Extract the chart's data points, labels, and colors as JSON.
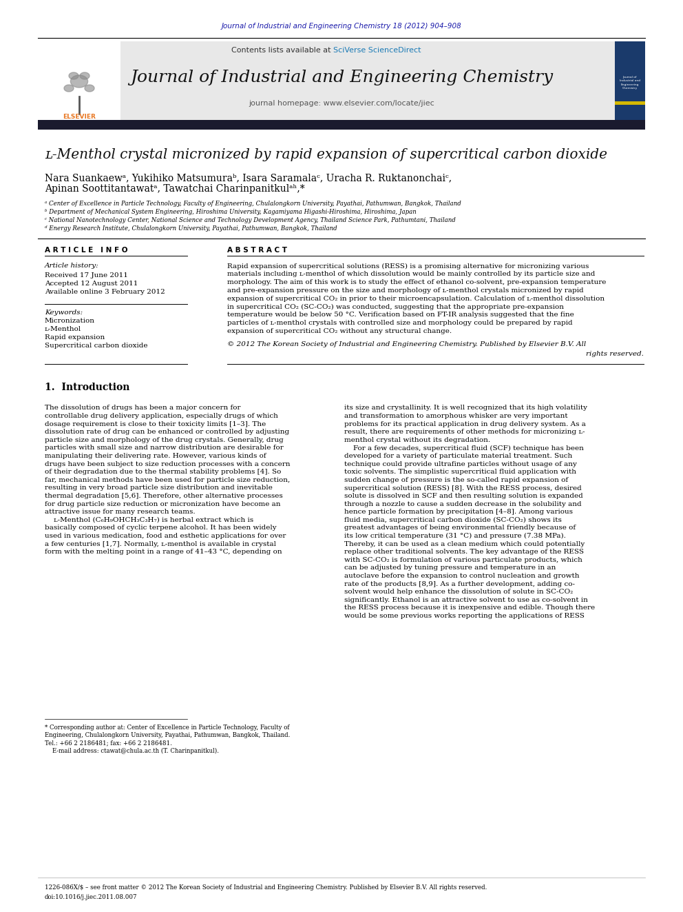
{
  "bg_color": "#ffffff",
  "top_journal_line": "Journal of Industrial and Engineering Chemistry 18 (2012) 904–908",
  "top_journal_line_color": "#1a1aaa",
  "header_bg": "#e8e8e8",
  "contents_line": "Contents lists available at ",
  "sciverse_text": "SciVerse ScienceDirect",
  "sciverse_color": "#1a7ab5",
  "journal_title": "Journal of Industrial and Engineering Chemistry",
  "journal_homepage": "journal homepage: www.elsevier.com/locate/jiec",
  "black_bar_color": "#1a1a2e",
  "article_title": "ʟ-Menthol crystal micronized by rapid expansion of supercritical carbon dioxide",
  "affil_a": "ᵃ Center of Excellence in Particle Technology, Faculty of Engineering, Chulalongkorn University, Payathai, Pathumwan, Bangkok, Thailand",
  "affil_b": "ᵇ Department of Mechanical System Engineering, Hiroshima University, Kagamiyama Higashi-Hiroshima, Hiroshima, Japan",
  "affil_c": "ᶜ National Nanotechnology Center, National Science and Technology Development Agency, Thailand Science Park, Pathumtani, Thailand",
  "affil_d": "ᵈ Energy Research Institute, Chulalongkorn University, Payathai, Pathumwan, Bangkok, Thailand",
  "article_info_header": "A R T I C L E   I N F O",
  "abstract_header": "A B S T R A C T",
  "article_history_label": "Article history:",
  "received": "Received 17 June 2011",
  "accepted": "Accepted 12 August 2011",
  "available": "Available online 3 February 2012",
  "keywords_label": "Keywords:",
  "keyword1": "Micronization",
  "keyword2": "ʟ-Menthol",
  "keyword3": "Rapid expansion",
  "keyword4": "Supercritical carbon dioxide",
  "abstract_text": "Rapid expansion of supercritical solutions (RESS) is a promising alternative for micronizing various\nmaterials including ʟ-menthol of which dissolution would be mainly controlled by its particle size and\nmorphology. The aim of this work is to study the effect of ethanol co-solvent, pre-expansion temperature\nand pre-expansion pressure on the size and morphology of ʟ-menthol crystals micronized by rapid\nexpansion of supercritical CO₂ in prior to their microencapsulation. Calculation of ʟ-menthol dissolution\nin supercritical CO₂ (SC-CO₂) was conducted, suggesting that the appropriate pre-expansion\ntemperature would be below 50 °C. Verification based on FT-IR analysis suggested that the fine\nparticles of ʟ-menthol crystals with controlled size and morphology could be prepared by rapid\nexpansion of supercritical CO₂ without any structural change.",
  "copyright_text": "© 2012 The Korean Society of Industrial and Engineering Chemistry. Published by Elsevier B.V. All\nrights reserved.",
  "intro_header": "1.  Introduction",
  "intro_col1": "The dissolution of drugs has been a major concern for\ncontrollable drug delivery application, especially drugs of which\ndosage requirement is close to their toxicity limits [1–3]. The\ndissolution rate of drug can be enhanced or controlled by adjusting\nparticle size and morphology of the drug crystals. Generally, drug\nparticles with small size and narrow distribution are desirable for\nmanipulating their delivering rate. However, various kinds of\ndrugs have been subject to size reduction processes with a concern\nof their degradation due to the thermal stability problems [4]. So\nfar, mechanical methods have been used for particle size reduction,\nresulting in very broad particle size distribution and inevitable\nthermal degradation [5,6]. Therefore, other alternative processes\nfor drug particle size reduction or micronization have become an\nattractive issue for many research teams.\n    ʟ-Menthol (C₆H₉OHCH₃C₃H₇) is herbal extract which is\nbasically composed of cyclic terpene alcohol. It has been widely\nused in various medication, food and esthetic applications for over\na few centuries [1,7]. Normally, ʟ-menthol is available in crystal\nform with the melting point in a range of 41–43 °C, depending on",
  "intro_col2": "its size and crystallinity. It is well recognized that its high volatility\nand transformation to amorphous whisker are very important\nproblems for its practical application in drug delivery system. As a\nresult, there are requirements of other methods for micronizing ʟ-\nmenthol crystal without its degradation.\n    For a few decades, supercritical fluid (SCF) technique has been\ndeveloped for a variety of particulate material treatment. Such\ntechnique could provide ultrafine particles without usage of any\ntoxic solvents. The simplistic supercritical fluid application with\nsudden change of pressure is the so-called rapid expansion of\nsupercritical solution (RESS) [8]. With the RESS process, desired\nsolute is dissolved in SCF and then resulting solution is expanded\nthrough a nozzle to cause a sudden decrease in the solubility and\nhence particle formation by precipitation [4–8]. Among various\nfluid media, supercritical carbon dioxide (SC-CO₂) shows its\ngreatest advantages of being environmental friendly because of\nits low critical temperature (31 °C) and pressure (7.38 MPa).\nThereby, it can be used as a clean medium which could potentially\nreplace other traditional solvents. The key advantage of the RESS\nwith SC-CO₂ is formulation of various particulate products, which\ncan be adjusted by tuning pressure and temperature in an\nautoclave before the expansion to control nucleation and growth\nrate of the products [8,9]. As a further development, adding co-\nsolvent would help enhance the dissolution of solute in SC-CO₂\nsignificantly. Ethanol is an attractive solvent to use as co-solvent in\nthe RESS process because it is inexpensive and edible. Though there\nwould be some previous works reporting the applications of RESS",
  "footnote_star": "* Corresponding author at: Center of Excellence in Particle Technology, Faculty of\nEngineering, Chulalongkorn University, Payathai, Pathumwan, Bangkok, Thailand.\nTel.: +66 2 2186481; fax: +66 2 2186481.\n    E-mail address: ctawat@chula.ac.th (T. Charinpanitkul).",
  "bottom_line1": "1226-086X/$ – see front matter © 2012 The Korean Society of Industrial and Engineering Chemistry. Published by Elsevier B.V. All rights reserved.",
  "bottom_line2": "doi:10.1016/j.jiec.2011.08.007"
}
